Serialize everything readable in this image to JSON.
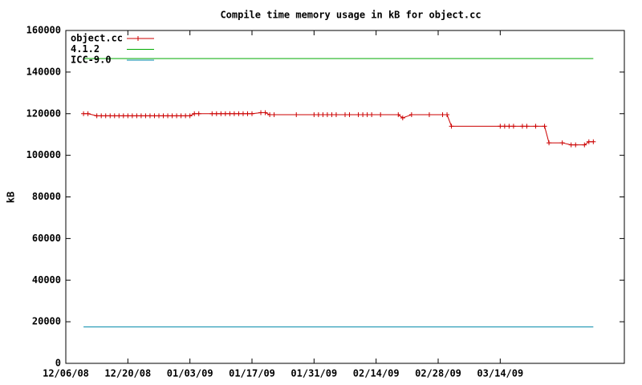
{
  "chart_data": {
    "type": "line",
    "title": "Compile time memory usage in kB for object.cc",
    "ylabel": "kB",
    "xlim": [
      "12/06/08",
      "04/11/09"
    ],
    "xticks": [
      "12/06/08",
      "12/20/08",
      "01/03/09",
      "01/17/09",
      "01/31/09",
      "02/14/09",
      "02/28/09",
      "03/14/09"
    ],
    "ylim": [
      0,
      160000
    ],
    "yticks": [
      0,
      20000,
      40000,
      60000,
      80000,
      100000,
      120000,
      140000,
      160000
    ],
    "grid": false,
    "legend": "top-left",
    "series": [
      {
        "name": "object.cc",
        "color": "#cc0000",
        "markers": true,
        "x": [
          "12/10/08",
          "12/11/08",
          "12/13/08",
          "12/14/08",
          "12/15/08",
          "12/16/08",
          "12/17/08",
          "12/18/08",
          "12/19/08",
          "12/20/08",
          "12/21/08",
          "12/22/08",
          "12/23/08",
          "12/24/08",
          "12/25/08",
          "12/26/08",
          "12/27/08",
          "12/28/08",
          "12/29/08",
          "12/30/08",
          "12/31/08",
          "01/01/09",
          "01/02/09",
          "01/03/09",
          "01/04/09",
          "01/05/09",
          "01/08/09",
          "01/09/09",
          "01/10/09",
          "01/11/09",
          "01/12/09",
          "01/13/09",
          "01/14/09",
          "01/15/09",
          "01/16/09",
          "01/17/09",
          "01/19/09",
          "01/20/09",
          "01/21/09",
          "01/22/09",
          "01/27/09",
          "01/31/09",
          "02/01/09",
          "02/02/09",
          "02/03/09",
          "02/04/09",
          "02/05/09",
          "02/07/09",
          "02/08/09",
          "02/10/09",
          "02/11/09",
          "02/12/09",
          "02/13/09",
          "02/15/09",
          "02/19/09",
          "02/20/09",
          "02/22/09",
          "02/26/09",
          "03/01/09",
          "03/02/09",
          "03/03/09",
          "03/14/09",
          "03/15/09",
          "03/16/09",
          "03/17/09",
          "03/19/09",
          "03/20/09",
          "03/22/09",
          "03/24/09",
          "03/25/09",
          "03/28/09",
          "03/30/09",
          "03/31/09",
          "04/02/09",
          "04/03/09",
          "04/04/09"
        ],
        "values": [
          120000,
          120000,
          119000,
          119000,
          119000,
          119000,
          119000,
          119000,
          119000,
          119000,
          119000,
          119000,
          119000,
          119000,
          119000,
          119000,
          119000,
          119000,
          119000,
          119000,
          119000,
          119000,
          119000,
          119000,
          120000,
          120000,
          120000,
          120000,
          120000,
          120000,
          120000,
          120000,
          120000,
          120000,
          120000,
          120000,
          120500,
          120500,
          119500,
          119500,
          119500,
          119500,
          119500,
          119500,
          119500,
          119500,
          119500,
          119500,
          119500,
          119500,
          119500,
          119500,
          119500,
          119500,
          119500,
          118000,
          119500,
          119500,
          119500,
          119500,
          114000,
          114000,
          114000,
          114000,
          114000,
          114000,
          114000,
          114000,
          114000,
          106000,
          106000,
          105000,
          105000,
          105000,
          106500,
          106500
        ]
      },
      {
        "name": "4.1.2",
        "color": "#00aa00",
        "markers": false,
        "x": [
          "12/10/08",
          "04/04/09"
        ],
        "values": [
          146500,
          146500
        ]
      },
      {
        "name": "ICC-9.0",
        "color": "#0088aa",
        "markers": false,
        "x": [
          "12/10/08",
          "04/04/09"
        ],
        "values": [
          17500,
          17500
        ]
      }
    ]
  }
}
